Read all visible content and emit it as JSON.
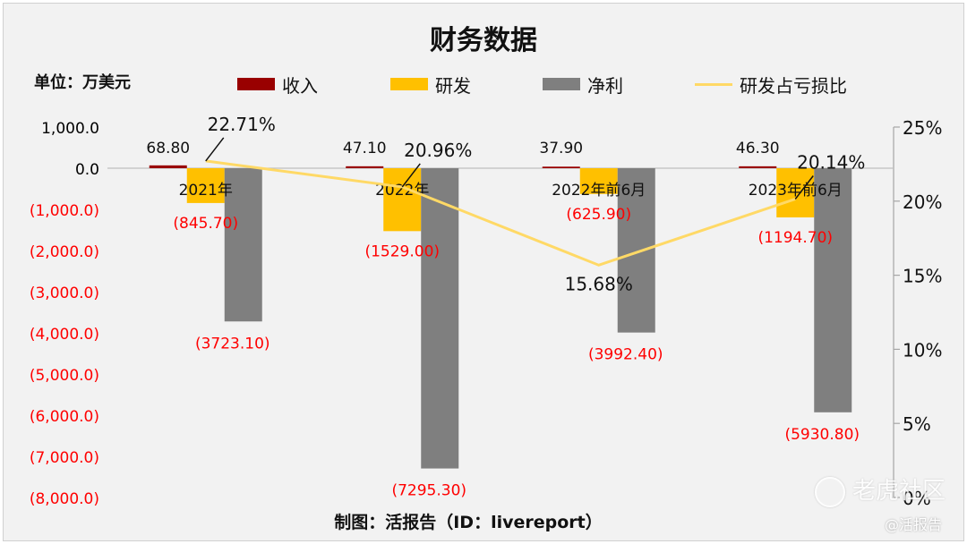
{
  "title": "财务数据",
  "unit_label": "单位：万美元",
  "credit": "制图：活报告（ID：livereport）",
  "watermark": {
    "brand": "老虎社区",
    "handle": "@活报告"
  },
  "colors": {
    "revenue": "#990000",
    "rnd": "#ffc000",
    "net": "#7f7f7f",
    "ratio": "#ffd966",
    "negative_text": "#ff0000",
    "positive_text": "#000000"
  },
  "legend": [
    {
      "label": "收入",
      "kind": "swatch",
      "color": "#990000"
    },
    {
      "label": "研发",
      "kind": "swatch",
      "color": "#ffc000"
    },
    {
      "label": "净利",
      "kind": "swatch",
      "color": "#7f7f7f"
    },
    {
      "label": "研发占亏损比",
      "kind": "line",
      "color": "#ffd966"
    }
  ],
  "chart_data": {
    "type": "bar",
    "categories": [
      "2021年",
      "2022年",
      "2022年前6月",
      "2023年前6月"
    ],
    "series": [
      {
        "name": "收入",
        "axis": "left",
        "values": [
          68.8,
          47.1,
          37.9,
          46.3
        ],
        "labels": [
          "68.80",
          "47.10",
          "37.90",
          "46.30"
        ]
      },
      {
        "name": "研发",
        "axis": "left",
        "values": [
          -845.7,
          -1529.0,
          -625.9,
          -1194.7
        ],
        "labels": [
          "(845.70)",
          "(1529.00)",
          "(625.90)",
          "(1194.70)"
        ]
      },
      {
        "name": "净利",
        "axis": "left",
        "values": [
          -3723.1,
          -7295.3,
          -3992.4,
          -5930.8
        ],
        "labels": [
          "(3723.10)",
          "(7295.30)",
          "(3992.40)",
          "(5930.80)"
        ]
      },
      {
        "name": "研发占亏损比",
        "type": "line",
        "axis": "right",
        "values": [
          22.71,
          20.96,
          15.68,
          20.14
        ],
        "labels": [
          "22.71%",
          "20.96%",
          "15.68%",
          "20.14%"
        ]
      }
    ],
    "y_left": {
      "min": -8000,
      "max": 1000,
      "step": 1000,
      "ticks": [
        "(8,000.0)",
        "(7,000.0)",
        "(6,000.0)",
        "(5,000.0)",
        "(4,000.0)",
        "(3,000.0)",
        "(2,000.0)",
        "(1,000.0)",
        "0.0",
        "1,000.0"
      ]
    },
    "y_right": {
      "min": 0,
      "max": 25,
      "step": 5,
      "ticks": [
        "0%",
        "5%",
        "10%",
        "15%",
        "20%",
        "25%"
      ]
    }
  }
}
